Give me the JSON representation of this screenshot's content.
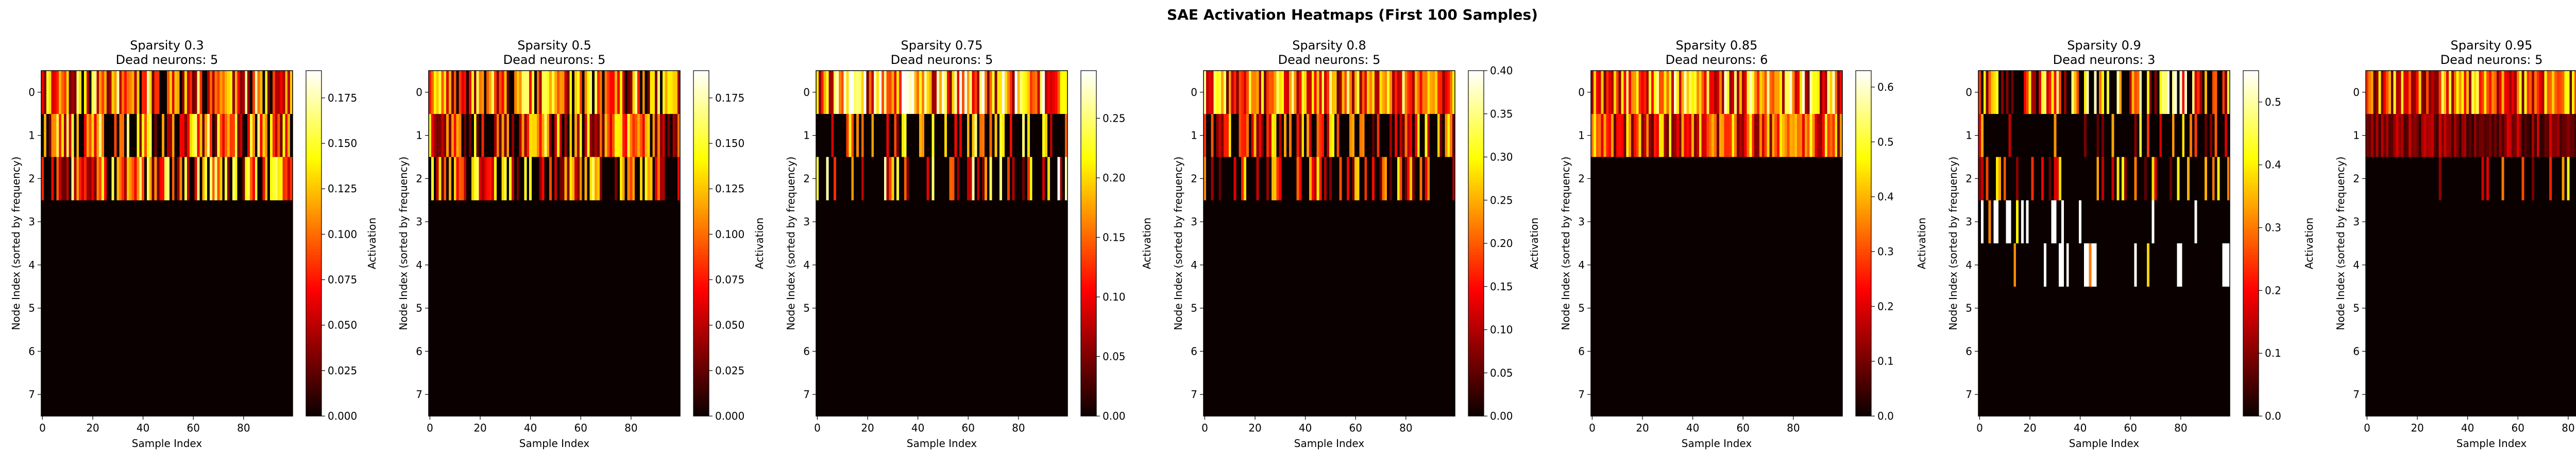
{
  "figure": {
    "suptitle": "SAE Activation Heatmaps (First 100 Samples)",
    "colormap": "hot",
    "colormap_stops": [
      "#0a0000",
      "#ff0000",
      "#ffff00",
      "#ffffff"
    ]
  },
  "chart_data": [
    {
      "type": "heatmap",
      "title": "Sparsity 0.3",
      "subtitle": "Dead neurons: 5",
      "xlabel": "Sample Index",
      "ylabel": "Node Index (sorted by frequency)",
      "colorbar_label": "Activation",
      "x_range": [
        0,
        99
      ],
      "x_ticks": [
        0,
        20,
        40,
        60,
        80
      ],
      "y_ticks": [
        0,
        1,
        2,
        3,
        4,
        5,
        6,
        7
      ],
      "num_samples": 100,
      "num_nodes": 8,
      "vmin": 0,
      "vmax": 0.19,
      "colorbar_ticks": [
        "0.000",
        "0.025",
        "0.050",
        "0.075",
        "0.100",
        "0.125",
        "0.150",
        "0.175"
      ],
      "row_mean_activation": [
        0.1,
        0.09,
        0.09,
        0,
        0,
        0,
        0,
        0
      ],
      "row_active_fraction": [
        0.85,
        0.8,
        0.8,
        0,
        0,
        0,
        0,
        0
      ],
      "seed": 11
    },
    {
      "type": "heatmap",
      "title": "Sparsity 0.5",
      "subtitle": "Dead neurons: 5",
      "xlabel": "Sample Index",
      "ylabel": "Node Index (sorted by frequency)",
      "colorbar_label": "Activation",
      "x_range": [
        0,
        99
      ],
      "x_ticks": [
        0,
        20,
        40,
        60,
        80
      ],
      "y_ticks": [
        0,
        1,
        2,
        3,
        4,
        5,
        6,
        7
      ],
      "num_samples": 100,
      "num_nodes": 8,
      "vmin": 0,
      "vmax": 0.19,
      "colorbar_ticks": [
        "0.000",
        "0.025",
        "0.050",
        "0.075",
        "0.100",
        "0.125",
        "0.150",
        "0.175"
      ],
      "row_mean_activation": [
        0.09,
        0.08,
        0.07,
        0,
        0,
        0,
        0,
        0
      ],
      "row_active_fraction": [
        0.8,
        0.75,
        0.65,
        0,
        0,
        0,
        0,
        0
      ],
      "seed": 23
    },
    {
      "type": "heatmap",
      "title": "Sparsity 0.75",
      "subtitle": "Dead neurons: 5",
      "xlabel": "Sample Index",
      "ylabel": "Node Index (sorted by frequency)",
      "colorbar_label": "Activation",
      "x_range": [
        0,
        99
      ],
      "x_ticks": [
        0,
        20,
        40,
        60,
        80
      ],
      "y_ticks": [
        0,
        1,
        2,
        3,
        4,
        5,
        6,
        7
      ],
      "num_samples": 100,
      "num_nodes": 8,
      "vmin": 0,
      "vmax": 0.29,
      "colorbar_ticks": [
        "0.00",
        "0.05",
        "0.10",
        "0.15",
        "0.20",
        "0.25"
      ],
      "row_mean_activation": [
        0.2,
        0.06,
        0.06,
        0,
        0,
        0,
        0,
        0
      ],
      "row_active_fraction": [
        0.98,
        0.35,
        0.3,
        0,
        0,
        0,
        0,
        0
      ],
      "seed": 37
    },
    {
      "type": "heatmap",
      "title": "Sparsity 0.8",
      "subtitle": "Dead neurons: 5",
      "xlabel": "Sample Index",
      "ylabel": "Node Index (sorted by frequency)",
      "colorbar_label": "Activation",
      "x_range": [
        0,
        99
      ],
      "x_ticks": [
        0,
        20,
        40,
        60,
        80
      ],
      "y_ticks": [
        0,
        1,
        2,
        3,
        4,
        5,
        6,
        7
      ],
      "num_samples": 100,
      "num_nodes": 8,
      "vmin": 0,
      "vmax": 0.4,
      "colorbar_ticks": [
        "0.00",
        "0.05",
        "0.10",
        "0.15",
        "0.20",
        "0.25",
        "0.30",
        "0.35",
        "0.40"
      ],
      "row_mean_activation": [
        0.24,
        0.1,
        0.09,
        0,
        0,
        0,
        0,
        0
      ],
      "row_active_fraction": [
        1.0,
        0.5,
        0.45,
        0,
        0,
        0,
        0,
        0
      ],
      "seed": 41
    },
    {
      "type": "heatmap",
      "title": "Sparsity 0.85",
      "subtitle": "Dead neurons: 6",
      "xlabel": "Sample Index",
      "ylabel": "Node Index (sorted by frequency)",
      "colorbar_label": "Activation",
      "x_range": [
        0,
        99
      ],
      "x_ticks": [
        0,
        20,
        40,
        60,
        80
      ],
      "y_ticks": [
        0,
        1,
        2,
        3,
        4,
        5,
        6,
        7
      ],
      "num_samples": 100,
      "num_nodes": 8,
      "vmin": 0,
      "vmax": 0.63,
      "colorbar_ticks": [
        "0.0",
        "0.1",
        "0.2",
        "0.3",
        "0.4",
        "0.5",
        "0.6"
      ],
      "row_mean_activation": [
        0.42,
        0.33,
        0,
        0,
        0,
        0,
        0,
        0
      ],
      "row_active_fraction": [
        1.0,
        1.0,
        0,
        0,
        0,
        0,
        0,
        0
      ],
      "seed": 53
    },
    {
      "type": "heatmap",
      "title": "Sparsity 0.9",
      "subtitle": "Dead neurons: 3",
      "xlabel": "Sample Index",
      "ylabel": "Node Index (sorted by frequency)",
      "colorbar_label": "Activation",
      "x_range": [
        0,
        99
      ],
      "x_ticks": [
        0,
        20,
        40,
        60,
        80
      ],
      "y_ticks": [
        0,
        1,
        2,
        3,
        4,
        5,
        6,
        7
      ],
      "num_samples": 100,
      "num_nodes": 8,
      "vmin": 0,
      "vmax": 0.55,
      "colorbar_ticks": [
        "0.0",
        "0.1",
        "0.2",
        "0.3",
        "0.4",
        "0.5"
      ],
      "row_mean_activation": [
        0.22,
        0.08,
        0.07,
        0.2,
        0.2,
        0,
        0,
        0
      ],
      "row_active_fraction": [
        0.6,
        0.25,
        0.25,
        0.15,
        0.15,
        0,
        0,
        0
      ],
      "seed": 67
    },
    {
      "type": "heatmap",
      "title": "Sparsity 0.95",
      "subtitle": "Dead neurons: 5",
      "xlabel": "Sample Index",
      "ylabel": "Node Index (sorted by frequency)",
      "colorbar_label": "Activation",
      "x_range": [
        0,
        99
      ],
      "x_ticks": [
        0,
        20,
        40,
        60,
        80
      ],
      "y_ticks": [
        0,
        1,
        2,
        3,
        4,
        5,
        6,
        7
      ],
      "num_samples": 100,
      "num_nodes": 8,
      "vmin": 0,
      "vmax": 0.23,
      "colorbar_ticks": [
        "0.00",
        "0.05",
        "0.10",
        "0.15",
        "0.20"
      ],
      "row_mean_activation": [
        0.13,
        0.05,
        0.03,
        0,
        0,
        0,
        0,
        0
      ],
      "row_active_fraction": [
        1.0,
        1.0,
        0.2,
        0,
        0,
        0,
        0,
        0
      ],
      "seed": 79
    }
  ]
}
